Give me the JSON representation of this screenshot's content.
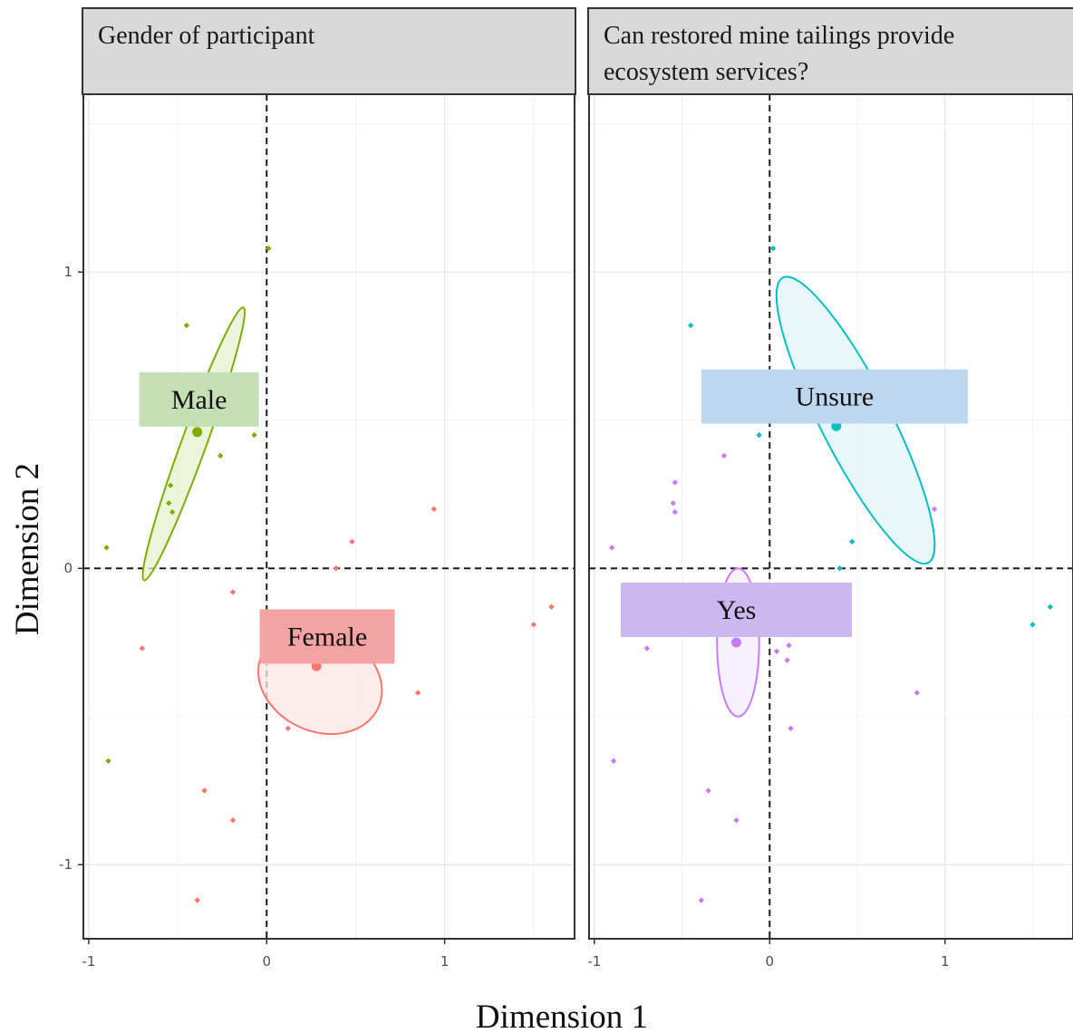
{
  "chart_data": {
    "type": "scatter",
    "xlabel": "Dimension 1",
    "ylabel": "Dimension 2",
    "xlim": [
      -1.03,
      1.73
    ],
    "ylim": [
      -1.25,
      1.6
    ],
    "x_ticks": [
      -1,
      0,
      1
    ],
    "y_ticks": [
      -1,
      0,
      1
    ],
    "x_tick_labels": [
      "-1",
      "0",
      "1"
    ],
    "y_tick_labels": [
      "-1",
      "0",
      "1"
    ],
    "grid": true,
    "reference_lines": {
      "x": 0,
      "y": 0,
      "style": "dashed"
    },
    "panels": [
      {
        "title": "Gender of participant",
        "groups": [
          {
            "name": "Male",
            "color": "#7cae00",
            "fill": "#e6f0d0",
            "label_bg": "#c5e0b4",
            "centroid": [
              -0.39,
              0.46
            ],
            "label_anchor": [
              -0.38,
              0.57
            ],
            "ellipse": {
              "center": [
                -0.41,
                0.42
              ],
              "semi_axes": [
                0.07,
                0.49
              ],
              "angle_deg": 20
            },
            "points": [
              [
                0.01,
                1.08
              ],
              [
                -0.45,
                0.82
              ],
              [
                -0.26,
                0.38
              ],
              [
                -0.54,
                0.28
              ],
              [
                -0.55,
                0.22
              ],
              [
                -0.53,
                0.19
              ],
              [
                -0.07,
                0.45
              ],
              [
                -0.9,
                0.07
              ],
              [
                -0.89,
                -0.65
              ]
            ]
          },
          {
            "name": "Female",
            "color": "#f8766d",
            "fill": "#fbe7e5",
            "label_bg": "#f4a3a3",
            "centroid": [
              0.28,
              -0.33
            ],
            "label_anchor": [
              0.34,
              -0.23
            ],
            "ellipse": {
              "center": [
                0.3,
                -0.38
              ],
              "semi_axes": [
                0.36,
                0.17
              ],
              "angle_deg": 25
            },
            "points": [
              [
                0.94,
                0.2
              ],
              [
                0.48,
                0.09
              ],
              [
                0.39,
                0.0
              ],
              [
                -0.19,
                -0.08
              ],
              [
                -0.7,
                -0.27
              ],
              [
                1.6,
                -0.13
              ],
              [
                1.5,
                -0.19
              ],
              [
                0.85,
                -0.42
              ],
              [
                0.12,
                -0.54
              ],
              [
                -0.35,
                -0.75
              ],
              [
                -0.19,
                -0.85
              ],
              [
                -0.39,
                -1.12
              ]
            ]
          }
        ]
      },
      {
        "title": "Can restored mine tailings provide ecosystem services?",
        "groups": [
          {
            "name": "Unsure",
            "color": "#00bfc4",
            "fill": "#e0f6f7",
            "label_bg": "#bdd7ee",
            "centroid": [
              0.38,
              0.48
            ],
            "label_anchor": [
              0.37,
              0.58
            ],
            "ellipse": {
              "center": [
                0.49,
                0.5
              ],
              "semi_axes": [
                0.2,
                0.54
              ],
              "angle_deg": -27
            },
            "points": [
              [
                0.02,
                1.08
              ],
              [
                -0.45,
                0.82
              ],
              [
                -0.06,
                0.45
              ],
              [
                0.47,
                0.09
              ],
              [
                0.4,
                0.0
              ],
              [
                1.5,
                -0.19
              ],
              [
                1.6,
                -0.13
              ]
            ]
          },
          {
            "name": "Yes",
            "color": "#c77cff",
            "fill": "#f4ecfc",
            "label_bg": "#cbb8f0",
            "centroid": [
              -0.19,
              -0.25
            ],
            "label_anchor": [
              -0.19,
              -0.14
            ],
            "ellipse": {
              "center": [
                -0.18,
                -0.25
              ],
              "semi_axes": [
                0.12,
                0.25
              ],
              "angle_deg": 0
            },
            "points": [
              [
                -0.26,
                0.38
              ],
              [
                -0.54,
                0.29
              ],
              [
                -0.55,
                0.22
              ],
              [
                -0.54,
                0.19
              ],
              [
                0.94,
                0.2
              ],
              [
                -0.9,
                0.07
              ],
              [
                -0.7,
                -0.27
              ],
              [
                0.04,
                -0.28
              ],
              [
                0.11,
                -0.26
              ],
              [
                0.1,
                -0.31
              ],
              [
                0.84,
                -0.42
              ],
              [
                0.12,
                -0.54
              ],
              [
                -0.89,
                -0.65
              ],
              [
                -0.35,
                -0.75
              ],
              [
                -0.19,
                -0.85
              ],
              [
                -0.39,
                -1.12
              ]
            ]
          }
        ]
      }
    ]
  }
}
